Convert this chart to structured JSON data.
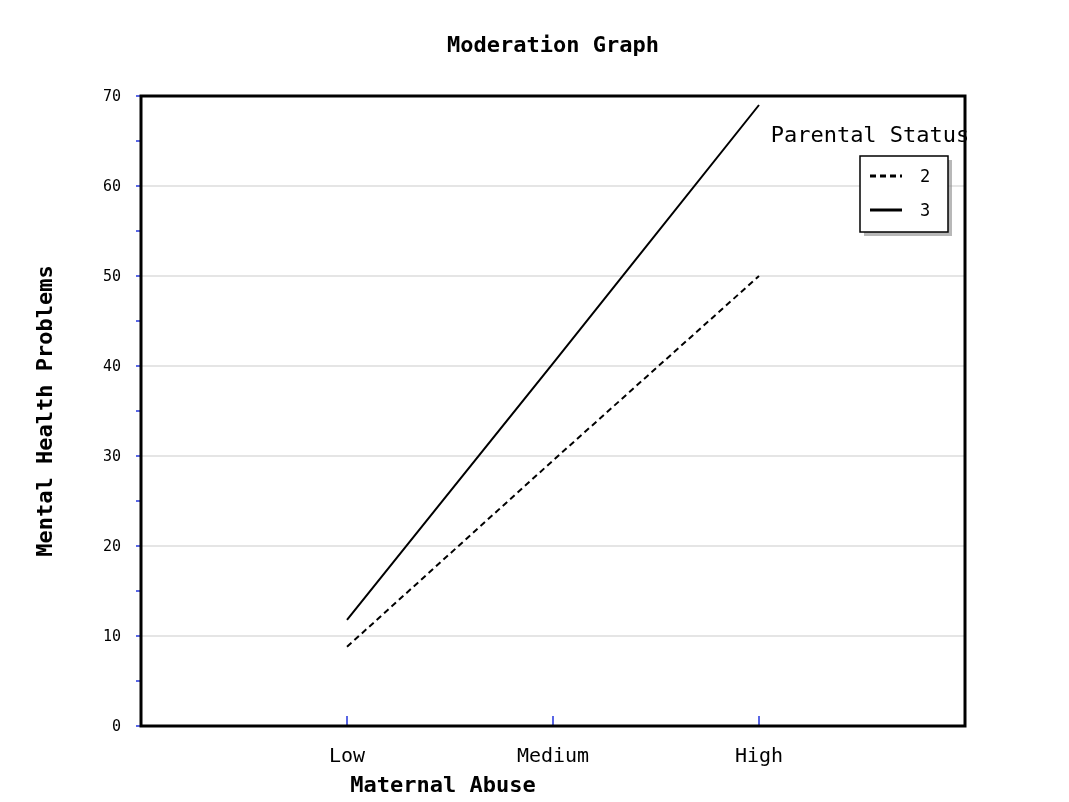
{
  "chart_data": {
    "type": "line",
    "title": "Moderation Graph",
    "xlabel": "Maternal Abuse",
    "ylabel": "Mental Health Problems",
    "legend_title": "Parental Status",
    "categories": [
      "Low",
      "Medium",
      "High"
    ],
    "series": [
      {
        "name": "2",
        "color": "#000000",
        "line_style": "dashed",
        "values": [
          8.8,
          29.5,
          50
        ]
      },
      {
        "name": "3",
        "color": "#000000",
        "line_style": "solid",
        "values": [
          11.8,
          40.3,
          69
        ]
      }
    ],
    "ylim": [
      0,
      70
    ],
    "yticks": [
      0,
      {
        "value": 5,
        "label": null
      },
      10,
      {
        "value": 15,
        "label": null
      },
      20,
      {
        "value": 25,
        "label": null
      },
      30,
      {
        "value": 35,
        "label": null
      },
      40,
      {
        "value": 45,
        "label": null
      },
      50,
      {
        "value": 55,
        "label": null
      },
      60,
      {
        "value": 65,
        "label": null
      },
      70
    ],
    "grid": "y",
    "legend": "top right",
    "marker": "none"
  }
}
